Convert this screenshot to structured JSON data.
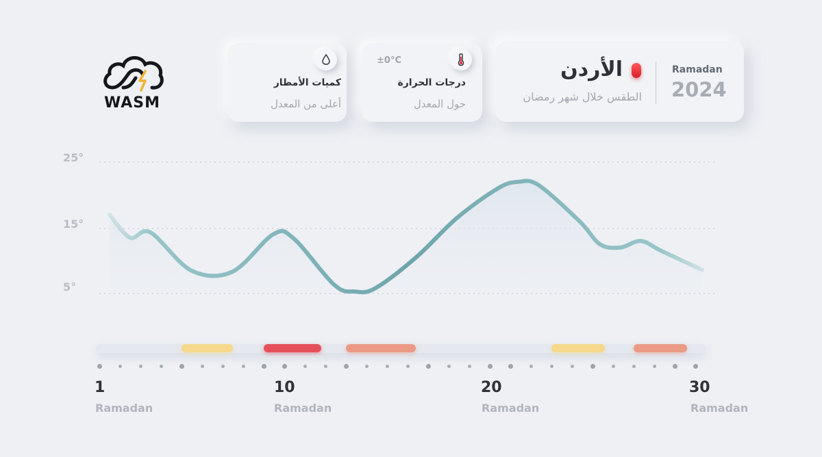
{
  "logo": {
    "text": "WASM"
  },
  "cards": {
    "rain": {
      "icon": "water-drop-icon",
      "title": "كميات الأمطار",
      "subtitle": "أعلى من المعدل"
    },
    "temperature": {
      "icon": "thermometer-icon",
      "delta": "±0°C",
      "title": "درجات الحرارة",
      "subtitle": "حول المعدل"
    },
    "main": {
      "country": "الأردن",
      "subtitle": "الطقس خلال شهر رمضان",
      "month_label": "Ramadan",
      "year": "2024",
      "indicator_color": "#e02a33"
    }
  },
  "chart_data": {
    "type": "line",
    "y_ticks": [
      "25°",
      "15°",
      "5°"
    ],
    "ylim": [
      5,
      25
    ],
    "grid": "dotted horizontal",
    "series": [
      {
        "x": [
          1,
          2,
          3,
          5,
          7,
          9,
          10,
          12,
          13,
          14,
          16,
          18,
          20,
          21,
          22,
          24,
          25,
          26,
          27,
          28,
          30
        ],
        "values": [
          17,
          13.5,
          14.3,
          8.5,
          8.3,
          14,
          13.4,
          6.3,
          5.3,
          5.8,
          10.5,
          16.5,
          21,
          22,
          21.5,
          16,
          12.5,
          12,
          13,
          11.5,
          8.6
        ]
      }
    ],
    "color": "#7fb3b8"
  },
  "timeline": {
    "start_day": 1,
    "end_day": 30,
    "segments": [
      {
        "from": 5,
        "to": 7.5,
        "color": "#f5d88c"
      },
      {
        "from": 9,
        "to": 11.8,
        "color": "#e4505a"
      },
      {
        "from": 13,
        "to": 16.4,
        "color": "#eb9a86"
      },
      {
        "from": 23,
        "to": 25.6,
        "color": "#f5d88c"
      },
      {
        "from": 27,
        "to": 29.6,
        "color": "#eb9a86"
      }
    ],
    "labels": [
      {
        "day": "1",
        "month": "Ramadan"
      },
      {
        "day": "10",
        "month": "Ramadan"
      },
      {
        "day": "20",
        "month": "Ramadan"
      },
      {
        "day": "30",
        "month": "Ramadan"
      }
    ]
  }
}
